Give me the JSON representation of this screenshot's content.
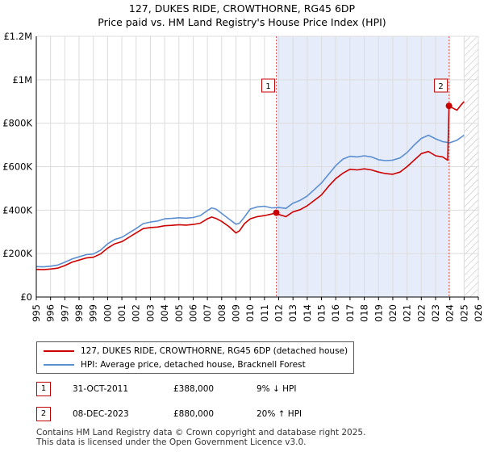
{
  "title_line1": "127, DUKES RIDE, CROWTHORNE, RG45 6DP",
  "title_line2": "Price paid vs. HM Land Registry's House Price Index (HPI)",
  "chart_data": {
    "type": "line",
    "title": "127, DUKES RIDE, CROWTHORNE, RG45 6DP — Price paid vs. HM Land Registry's House Price Index (HPI)",
    "xlim": [
      1995,
      2026
    ],
    "ylim": [
      0,
      1200000
    ],
    "x_ticks": [
      "1995",
      "1996",
      "1997",
      "1998",
      "1999",
      "2000",
      "2001",
      "2002",
      "2003",
      "2004",
      "2005",
      "2006",
      "2007",
      "2008",
      "2009",
      "2010",
      "2011",
      "2012",
      "2013",
      "2014",
      "2015",
      "2016",
      "2017",
      "2018",
      "2019",
      "2020",
      "2021",
      "2022",
      "2023",
      "2024",
      "2025",
      "2026"
    ],
    "y_ticks": [
      {
        "value": 0,
        "label": "£0"
      },
      {
        "value": 200000,
        "label": "£200K"
      },
      {
        "value": 400000,
        "label": "£400K"
      },
      {
        "value": 600000,
        "label": "£600K"
      },
      {
        "value": 800000,
        "label": "£800K"
      },
      {
        "value": 1000000,
        "label": "£1M"
      },
      {
        "value": 1200000,
        "label": "£1.2M"
      }
    ],
    "grid": true,
    "shaded_region": [
      2011.83,
      2023.94
    ],
    "future_hatch_from": 2025.0,
    "series": [
      {
        "name": "127, DUKES RIDE, CROWTHORNE, RG45 6DP (detached house)",
        "color": "#cc0000",
        "x": [
          1995,
          1995.5,
          1996,
          1996.5,
          1997,
          1997.5,
          1998,
          1998.5,
          1999,
          1999.5,
          2000,
          2000.5,
          2001,
          2001.5,
          2002,
          2002.5,
          2003,
          2003.5,
          2004,
          2004.5,
          2005,
          2005.5,
          2006,
          2006.5,
          2007,
          2007.3,
          2007.6,
          2008,
          2008.5,
          2009,
          2009.25,
          2009.6,
          2010,
          2010.5,
          2011,
          2011.5,
          2011.83,
          2012,
          2012.5,
          2013,
          2013.5,
          2014,
          2014.5,
          2015,
          2015.5,
          2016,
          2016.5,
          2017,
          2017.5,
          2018,
          2018.5,
          2019,
          2019.5,
          2020,
          2020.5,
          2021,
          2021.5,
          2022,
          2022.5,
          2023,
          2023.5,
          2023.85,
          2023.94,
          2024.2,
          2024.5,
          2024.8,
          2025.0
        ],
        "y": [
          127000,
          126000,
          129000,
          133000,
          145000,
          160000,
          170000,
          180000,
          183000,
          198000,
          225000,
          245000,
          255000,
          275000,
          295000,
          315000,
          320000,
          322000,
          328000,
          330000,
          333000,
          331000,
          334000,
          340000,
          360000,
          368000,
          362000,
          348000,
          325000,
          295000,
          305000,
          338000,
          360000,
          370000,
          375000,
          382000,
          388000,
          380000,
          370000,
          392000,
          402000,
          420000,
          445000,
          470000,
          510000,
          545000,
          570000,
          588000,
          585000,
          590000,
          585000,
          575000,
          568000,
          565000,
          575000,
          600000,
          630000,
          660000,
          670000,
          650000,
          645000,
          630000,
          880000,
          870000,
          860000,
          885000,
          900000
        ]
      },
      {
        "name": "HPI: Average price, detached house, Bracknell Forest",
        "color": "#5b8fd0",
        "x": [
          1995,
          1995.5,
          1996,
          1996.5,
          1997,
          1997.5,
          1998,
          1998.5,
          1999,
          1999.5,
          2000,
          2000.5,
          2001,
          2001.5,
          2002,
          2002.5,
          2003,
          2003.5,
          2004,
          2004.5,
          2005,
          2005.5,
          2006,
          2006.5,
          2007,
          2007.3,
          2007.6,
          2008,
          2008.5,
          2009,
          2009.25,
          2009.6,
          2010,
          2010.5,
          2011,
          2011.5,
          2012,
          2012.5,
          2013,
          2013.5,
          2014,
          2014.5,
          2015,
          2015.5,
          2016,
          2016.5,
          2017,
          2017.5,
          2018,
          2018.5,
          2019,
          2019.5,
          2020,
          2020.5,
          2021,
          2021.5,
          2022,
          2022.5,
          2023,
          2023.5,
          2024,
          2024.5,
          2025.0
        ],
        "y": [
          140000,
          139000,
          142000,
          147000,
          160000,
          175000,
          185000,
          195000,
          198000,
          215000,
          245000,
          265000,
          275000,
          295000,
          315000,
          338000,
          345000,
          350000,
          360000,
          362000,
          365000,
          363000,
          366000,
          375000,
          398000,
          410000,
          405000,
          385000,
          360000,
          335000,
          340000,
          368000,
          405000,
          415000,
          418000,
          410000,
          412000,
          408000,
          432000,
          445000,
          465000,
          495000,
          525000,
          565000,
          605000,
          635000,
          648000,
          645000,
          650000,
          645000,
          632000,
          628000,
          630000,
          640000,
          665000,
          700000,
          730000,
          745000,
          728000,
          715000,
          710000,
          722000,
          745000
        ]
      }
    ],
    "annotations": [
      {
        "id": "1",
        "date": "31-OCT-2011",
        "x": 2011.83,
        "price": "£388,000",
        "y": 388000,
        "hpi": "9% ↓ HPI"
      },
      {
        "id": "2",
        "date": "08-DEC-2023",
        "x": 2023.94,
        "price": "£880,000",
        "y": 880000,
        "hpi": "20% ↑ HPI"
      }
    ]
  },
  "legend": {
    "price_paid_label": "127, DUKES RIDE, CROWTHORNE, RG45 6DP (detached house)",
    "hpi_label": "HPI: Average price, detached house, Bracknell Forest",
    "price_paid_color": "#cc0000",
    "hpi_color": "#5b8fd0"
  },
  "transactions": [
    {
      "id": "1",
      "date": "31-OCT-2011",
      "price": "£388,000",
      "hpi": "9% ↓ HPI"
    },
    {
      "id": "2",
      "date": "08-DEC-2023",
      "price": "£880,000",
      "hpi": "20% ↑ HPI"
    }
  ],
  "footer": {
    "line1": "Contains HM Land Registry data © Crown copyright and database right 2025.",
    "line2": "This data is licensed under the Open Government Licence v3.0."
  }
}
